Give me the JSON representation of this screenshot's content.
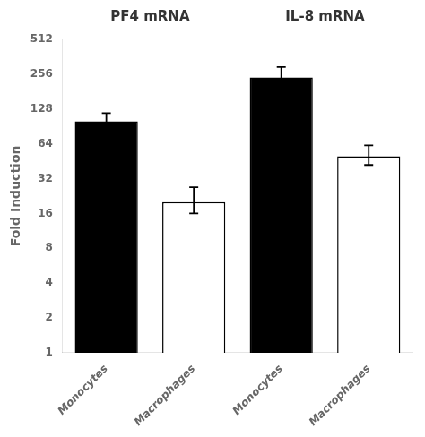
{
  "chart_data": {
    "type": "bar",
    "categories": [
      "Monocytes",
      "Macrophages",
      "Monocytes",
      "Macrophages"
    ],
    "values": [
      100,
      20,
      240,
      50
    ],
    "error_upper": [
      18,
      7,
      55,
      12
    ],
    "error_lower": [
      12,
      4,
      30,
      8
    ],
    "colors": [
      "#000000",
      "#ffffff",
      "#000000",
      "#ffffff"
    ],
    "group_labels": [
      "PF4 mRNA",
      "IL-8 mRNA"
    ],
    "ylabel": "Fold Induction",
    "log": "y",
    "ylim": [
      1,
      512
    ],
    "yticks": [
      1,
      2,
      4,
      8,
      16,
      32,
      64,
      128,
      256,
      512
    ],
    "grid": false
  }
}
